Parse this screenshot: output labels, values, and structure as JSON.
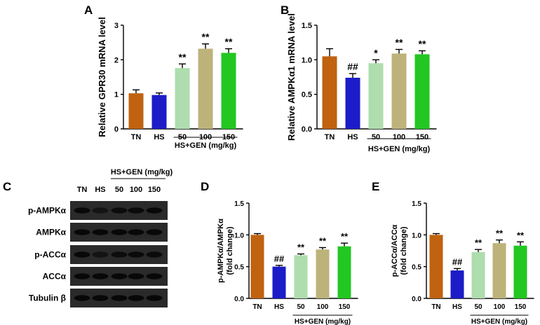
{
  "panel_letters": {
    "A": "A",
    "B": "B",
    "C": "C",
    "D": "D",
    "E": "E"
  },
  "colors": {
    "TN": "#C0620F",
    "HS": "#1C1CC8",
    "GEN50": "#AEDDAE",
    "GEN100": "#BDB37A",
    "GEN150": "#22C722"
  },
  "chart_data": [
    {
      "panel": "A",
      "type": "bar",
      "ylabel": "Relative GPR30 mRNA level",
      "xlabel": "HS+GEN (mg/kg)",
      "categories": [
        "TN",
        "HS",
        "50",
        "100",
        "150"
      ],
      "values": [
        1.03,
        0.98,
        1.76,
        2.32,
        2.2
      ],
      "errors": [
        0.1,
        0.06,
        0.12,
        0.14,
        0.12
      ],
      "annotations": [
        "",
        "",
        "**",
        "**",
        "**"
      ],
      "ylim": [
        0,
        3
      ],
      "yticks": [
        "0",
        "1",
        "2",
        "3"
      ],
      "grid": false
    },
    {
      "panel": "B",
      "type": "bar",
      "ylabel": "Relative AMPKα1 mRNA level",
      "xlabel": "HS+GEN (mg/kg)",
      "categories": [
        "TN",
        "HS",
        "50",
        "100",
        "150"
      ],
      "values": [
        1.05,
        0.74,
        0.95,
        1.09,
        1.08
      ],
      "errors": [
        0.11,
        0.06,
        0.05,
        0.06,
        0.05
      ],
      "annotations": [
        "",
        "##",
        "*",
        "**",
        "**"
      ],
      "ylim": [
        0,
        1.5
      ],
      "yticks": [
        "0.0",
        "0.5",
        "1.0",
        "1.5"
      ],
      "grid": false
    },
    {
      "panel": "D",
      "type": "bar",
      "ylabel": "p-AMPKα/AMPKα (fold change)",
      "ylabel_lines": [
        "p-AMPKα/AMPKα",
        "(fold change)"
      ],
      "xlabel": "HS+GEN (mg/kg)",
      "categories": [
        "TN",
        "HS",
        "50",
        "100",
        "150"
      ],
      "values": [
        1.0,
        0.5,
        0.68,
        0.77,
        0.82
      ],
      "errors": [
        0.02,
        0.02,
        0.02,
        0.03,
        0.05
      ],
      "annotations": [
        "",
        "##",
        "**",
        "**",
        "**"
      ],
      "ylim": [
        0,
        1.5
      ],
      "yticks": [
        "0.0",
        "0.5",
        "1.0",
        "1.5"
      ],
      "grid": false
    },
    {
      "panel": "E",
      "type": "bar",
      "ylabel": "p-ACCα/ACCα (fold change)",
      "ylabel_lines": [
        "p-ACCα/ACCα",
        "(fold change)"
      ],
      "xlabel": "HS+GEN (mg/kg)",
      "categories": [
        "TN",
        "HS",
        "50",
        "100",
        "150"
      ],
      "values": [
        1.0,
        0.44,
        0.73,
        0.87,
        0.83
      ],
      "errors": [
        0.02,
        0.03,
        0.04,
        0.05,
        0.06
      ],
      "annotations": [
        "",
        "##",
        "**",
        "**",
        "**"
      ],
      "ylim": [
        0,
        1.5
      ],
      "yticks": [
        "0.0",
        "0.5",
        "1.0",
        "1.5"
      ],
      "grid": false
    }
  ],
  "western_blot": {
    "panel": "C",
    "header": "HS+GEN (mg/kg)",
    "lanes": [
      "TN",
      "HS",
      "50",
      "100",
      "150"
    ],
    "rows": [
      {
        "label": "p-AMPKα",
        "intensity": [
          0.95,
          0.4,
          0.75,
          0.85,
          0.9
        ]
      },
      {
        "label": "AMPKα",
        "intensity": [
          0.9,
          0.9,
          0.9,
          0.9,
          0.9
        ]
      },
      {
        "label": "p-ACCα",
        "intensity": [
          0.95,
          0.45,
          0.7,
          0.85,
          0.8
        ]
      },
      {
        "label": "ACCα",
        "intensity": [
          0.9,
          0.9,
          0.9,
          0.9,
          0.9
        ]
      },
      {
        "label": "Tubulin β",
        "intensity": [
          0.95,
          0.95,
          0.95,
          0.95,
          0.95
        ]
      }
    ]
  }
}
